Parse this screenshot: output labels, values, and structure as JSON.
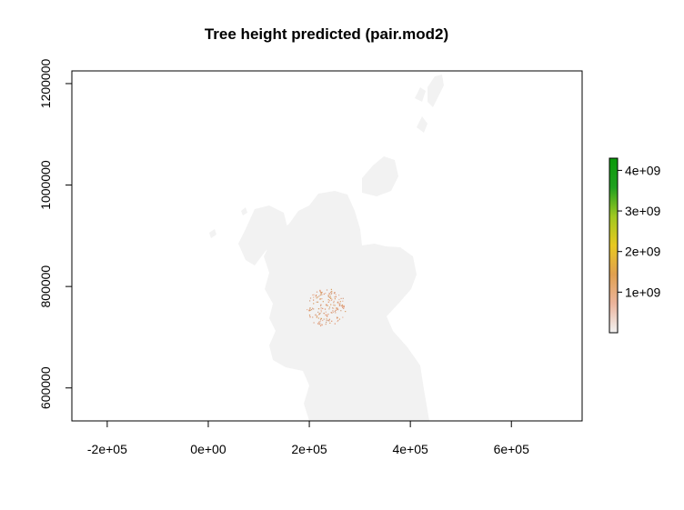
{
  "chart_data": {
    "type": "heatmap",
    "title": "Tree height predicted (pair.mod2)",
    "xlabel": "",
    "ylabel": "",
    "xlim": [
      -270000,
      740000
    ],
    "ylim": [
      535000,
      1225000
    ],
    "x_ticks": [
      -200000,
      0,
      200000,
      400000,
      600000
    ],
    "x_tick_labels": [
      "-2e+05",
      "0e+00",
      "2e+05",
      "4e+05",
      "6e+05"
    ],
    "y_ticks": [
      600000,
      800000,
      1000000,
      1200000
    ],
    "y_tick_labels": [
      "600000",
      "800000",
      "1000000",
      "1200000"
    ],
    "grid": false,
    "land_color": "#f2f2f2",
    "legend": {
      "placement": "right",
      "min": 0,
      "max": 4300000000,
      "ticks": [
        1000000000,
        2000000000,
        3000000000,
        4000000000
      ],
      "tick_labels": [
        "1e+09",
        "2e+09",
        "3e+09",
        "4e+09"
      ],
      "colors": [
        "#f2f2f2",
        "#ebb49c",
        "#e0a050",
        "#e8c820",
        "#a0c820",
        "#20a020",
        "#0a9a0a"
      ]
    }
  }
}
